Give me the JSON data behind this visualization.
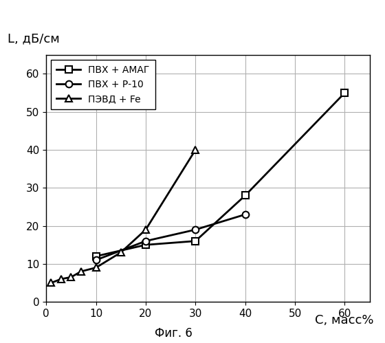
{
  "ylabel": "L, дБ/см",
  "xlabel": "C, масс%",
  "caption": "Фиг. 6",
  "xlim": [
    0,
    65
  ],
  "ylim": [
    0,
    65
  ],
  "xticks": [
    0,
    10,
    20,
    30,
    40,
    50,
    60
  ],
  "yticks": [
    0,
    10,
    20,
    30,
    40,
    50,
    60
  ],
  "series": [
    {
      "label": "ПВХ + АМАГ",
      "x": [
        10,
        20,
        30,
        40,
        60
      ],
      "y": [
        12,
        15,
        16,
        28,
        55
      ],
      "marker": "s",
      "color": "#000000",
      "linewidth": 2.0
    },
    {
      "label": "ПВХ + Р-10",
      "x": [
        10,
        20,
        30,
        40
      ],
      "y": [
        11,
        16,
        19,
        23
      ],
      "marker": "o",
      "color": "#000000",
      "linewidth": 2.0
    },
    {
      "label": "ПЭВД + Fe",
      "x": [
        1,
        3,
        5,
        7,
        10,
        15,
        20,
        30
      ],
      "y": [
        5,
        6,
        6.5,
        8,
        9,
        13,
        19,
        40
      ],
      "marker": "^",
      "color": "#000000",
      "linewidth": 2.0
    }
  ],
  "background_color": "#ffffff",
  "grid_color": "#b0b0b0",
  "legend_fontsize": 10,
  "axis_label_fontsize": 13,
  "tick_fontsize": 11,
  "caption_fontsize": 12
}
